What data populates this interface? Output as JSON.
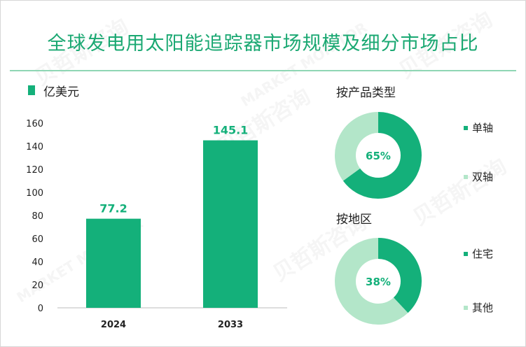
{
  "title": "全球发电用太阳能追踪器市场规模及细分市场占比",
  "bar_legend": "亿美元",
  "watermark_cn": "贝哲斯咨询",
  "watermark_en": "MARKET MONITOR",
  "colors": {
    "title": "#1aa872",
    "bar": "#14b07a",
    "primary_slice": "#14b07a",
    "secondary_slice": "#b3e6c9"
  },
  "chart_data": [
    {
      "type": "bar",
      "categories": [
        "2024",
        "2033"
      ],
      "values": [
        77.2,
        145.1
      ],
      "data_labels": [
        "77.2",
        "145.1"
      ],
      "ylim": [
        0,
        160
      ],
      "yticks": [
        0,
        20,
        40,
        60,
        80,
        100,
        120,
        140,
        160
      ],
      "ylabel": "",
      "xlabel": "",
      "legend": "top-left"
    },
    {
      "type": "pie",
      "title": "按产品类型",
      "labels": [
        "单轴",
        "双轴"
      ],
      "values": [
        65,
        35
      ],
      "center_label": "65%"
    },
    {
      "type": "pie",
      "title": "按地区",
      "labels": [
        "住宅",
        "其他"
      ],
      "values": [
        38,
        62
      ],
      "center_label": "38%"
    }
  ]
}
